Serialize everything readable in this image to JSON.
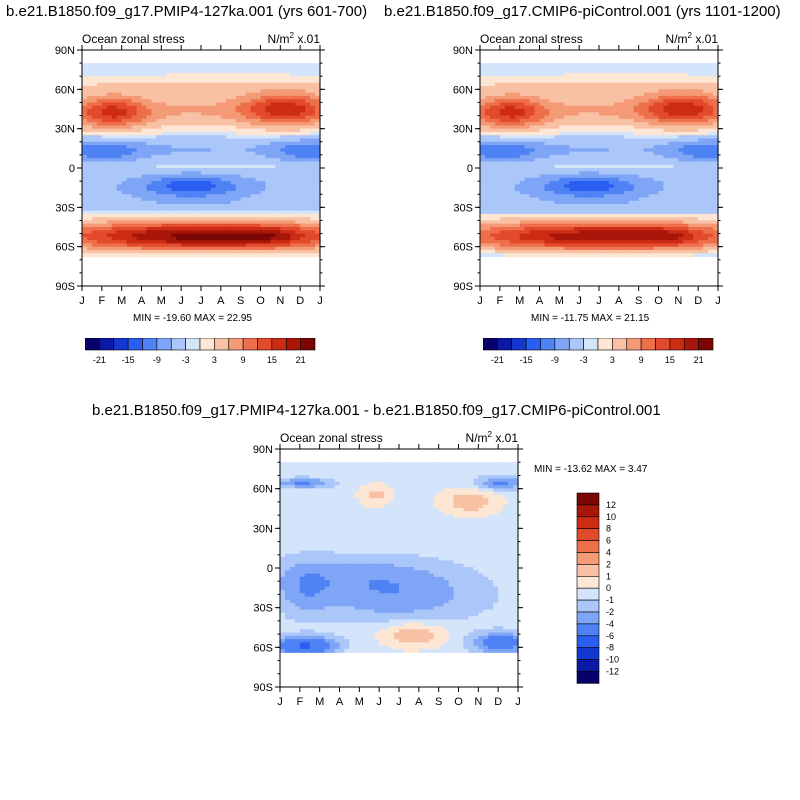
{
  "chart_data": [
    {
      "type": "heatmap",
      "title": "b.e21.B1850.f09_g17.PMIP4-127ka.001 (yrs 601-700)",
      "left_label": "Ocean zonal stress",
      "right_label": "N/m",
      "units_sup": "2",
      "units_suffix": " x.01",
      "x_ticks": [
        "J",
        "F",
        "M",
        "A",
        "M",
        "J",
        "J",
        "A",
        "S",
        "O",
        "N",
        "D",
        "J"
      ],
      "y_ticks": [
        "90N",
        "60N",
        "30N",
        "0",
        "30S",
        "60S",
        "90S"
      ],
      "ylim": [
        -90,
        90
      ],
      "minmax": "MIN = -19.60   MAX =  22.95",
      "colorbar_labels": [
        "-21",
        "-15",
        "-9",
        "-3",
        "3",
        "9",
        "15",
        "21"
      ]
    },
    {
      "type": "heatmap",
      "title": "b.e21.B1850.f09_g17.CMIP6-piControl.001 (yrs 1101-1200)",
      "left_label": "Ocean zonal stress",
      "right_label": "N/m",
      "units_sup": "2",
      "units_suffix": " x.01",
      "x_ticks": [
        "J",
        "F",
        "M",
        "A",
        "M",
        "J",
        "J",
        "A",
        "S",
        "O",
        "N",
        "D",
        "J"
      ],
      "y_ticks": [
        "90N",
        "60N",
        "30N",
        "0",
        "30S",
        "60S",
        "90S"
      ],
      "ylim": [
        -90,
        90
      ],
      "minmax": "MIN = -11.75   MAX =  21.15",
      "colorbar_labels": [
        "-21",
        "-15",
        "-9",
        "-3",
        "3",
        "9",
        "15",
        "21"
      ]
    },
    {
      "type": "heatmap",
      "title": "b.e21.B1850.f09_g17.PMIP4-127ka.001 - b.e21.B1850.f09_g17.CMIP6-piControl.001",
      "left_label": "Ocean zonal stress",
      "right_label": "N/m",
      "units_sup": "2",
      "units_suffix": " x.01",
      "x_ticks": [
        "J",
        "F",
        "M",
        "A",
        "M",
        "J",
        "J",
        "A",
        "S",
        "O",
        "N",
        "D",
        "J"
      ],
      "y_ticks": [
        "90N",
        "60N",
        "30N",
        "0",
        "30S",
        "60S",
        "90S"
      ],
      "ylim": [
        -90,
        90
      ],
      "minmax": "MIN = -13.62   MAX =    3.47",
      "colorbar_labels": [
        "12",
        "10",
        "8",
        "6",
        "4",
        "2",
        "1",
        "0",
        "-1",
        "-2",
        "-4",
        "-6",
        "-8",
        "-10",
        "-12"
      ]
    }
  ],
  "colors": {
    "palette": [
      "#08006b",
      "#0a1aa6",
      "#1238d1",
      "#2a5ef0",
      "#4f82f4",
      "#7ea5f6",
      "#abc6f8",
      "#d3e4fb",
      "#fde6d4",
      "#f9c1a4",
      "#f59a76",
      "#ee6f4c",
      "#e34a2c",
      "#cc2c14",
      "#a8160a",
      "#7a0703"
    ],
    "cb_diff": [
      "#7a0703",
      "#a8160a",
      "#cc2c14",
      "#e34a2c",
      "#ee6f4c",
      "#f59a76",
      "#f9c1a4",
      "#fde6d4",
      "#d3e4fb",
      "#abc6f8",
      "#7ea5f6",
      "#4f82f4",
      "#2a5ef0",
      "#1238d1",
      "#0a1aa6",
      "#08006b"
    ]
  }
}
